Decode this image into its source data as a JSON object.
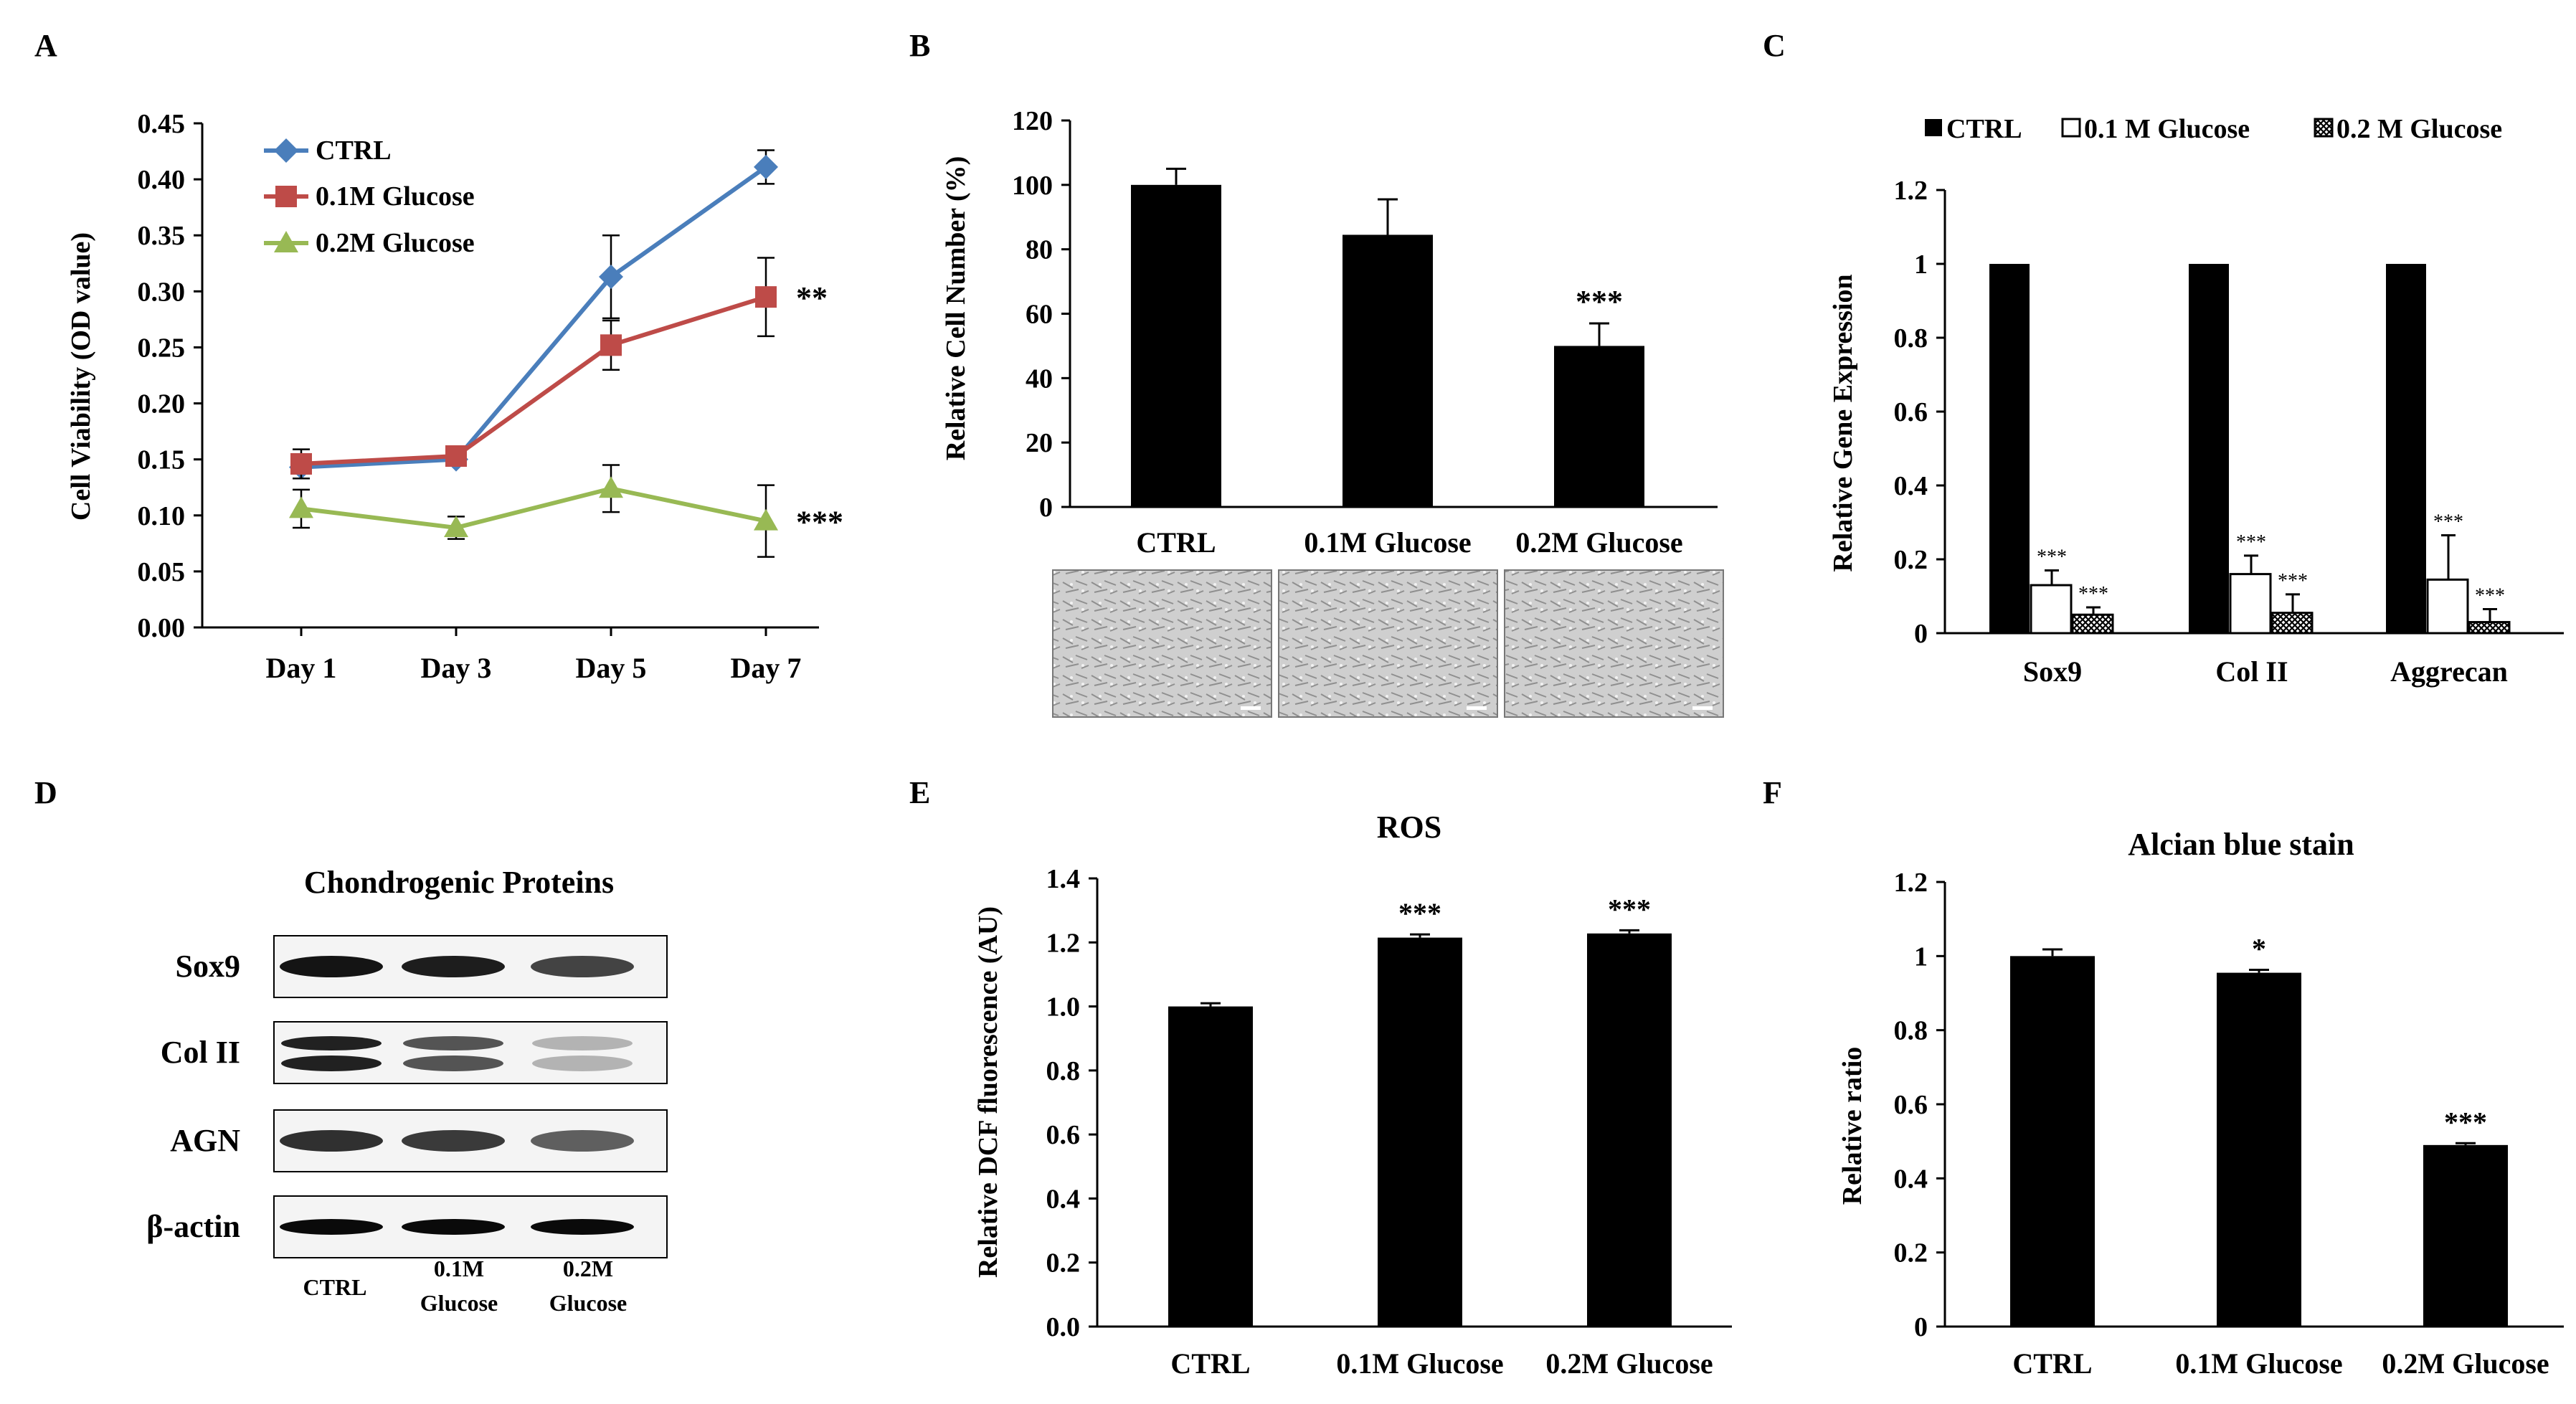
{
  "colors": {
    "ctrl": "#4a7ebb",
    "g01": "#be4b48",
    "g02": "#98b954",
    "bar": "#000000"
  },
  "panels": {
    "A": "A",
    "B": "B",
    "C": "C",
    "D": "D",
    "E": "E",
    "F": "F"
  },
  "chart_data": [
    {
      "id": "A",
      "type": "line",
      "title": "",
      "xlabel": "",
      "ylabel": "Cell Viability (OD value)",
      "ylim": [
        0,
        0.45
      ],
      "yticks": [
        "0.00",
        "0.05",
        "0.10",
        "0.15",
        "0.20",
        "0.25",
        "0.30",
        "0.35",
        "0.40",
        "0.45"
      ],
      "categories": [
        "Day 1",
        "Day 3",
        "Day 5",
        "Day 7"
      ],
      "legend": "top-left",
      "series": [
        {
          "name": "CTRL",
          "color": "#4a7ebb",
          "marker": "diamond",
          "values": [
            0.143,
            0.15,
            0.313,
            0.411
          ],
          "errors": [
            0.01,
            0.005,
            0.037,
            0.015
          ],
          "sig": ""
        },
        {
          "name": "0.1M Glucose",
          "color": "#be4b48",
          "marker": "square",
          "values": [
            0.146,
            0.153,
            0.252,
            0.295
          ],
          "errors": [
            0.013,
            0.005,
            0.022,
            0.035
          ],
          "sig": "**"
        },
        {
          "name": "0.2M Glucose",
          "color": "#98b954",
          "marker": "triangle",
          "values": [
            0.106,
            0.089,
            0.124,
            0.095
          ],
          "errors": [
            0.017,
            0.01,
            0.021,
            0.032
          ],
          "sig": "***"
        }
      ]
    },
    {
      "id": "B",
      "type": "bar",
      "title": "",
      "ylabel": "Relative Cell Number (%)",
      "ylim": [
        0,
        120
      ],
      "yticks": [
        "0",
        "20",
        "40",
        "60",
        "80",
        "100",
        "120"
      ],
      "categories": [
        "CTRL",
        "0.1M Glucose",
        "0.2M Glucose"
      ],
      "values": [
        100,
        84.5,
        50
      ],
      "errors": [
        5,
        11,
        7
      ],
      "sig": [
        "",
        "",
        "***"
      ]
    },
    {
      "id": "C",
      "type": "bar",
      "title": "",
      "ylabel": "Relative Gene Expression",
      "ylim": [
        0,
        1.2
      ],
      "yticks": [
        "0",
        "0.2",
        "0.4",
        "0.6",
        "0.8",
        "1",
        "1.2"
      ],
      "categories": [
        "Sox9",
        "Col II",
        "Aggrecan"
      ],
      "legend": "top",
      "series": [
        {
          "name": "CTRL",
          "values": [
            1,
            1,
            1
          ],
          "errors": [
            0,
            0,
            0
          ],
          "sig": [
            "",
            "",
            ""
          ]
        },
        {
          "name": "0.1 M Glucose",
          "values": [
            0.13,
            0.16,
            0.145
          ],
          "errors": [
            0.04,
            0.05,
            0.12
          ],
          "sig": [
            "***",
            "***",
            "***"
          ]
        },
        {
          "name": "0.2 M Glucose",
          "values": [
            0.05,
            0.055,
            0.03
          ],
          "errors": [
            0.02,
            0.05,
            0.035
          ],
          "sig": [
            "***",
            "***",
            "***"
          ]
        }
      ]
    },
    {
      "id": "E",
      "type": "bar",
      "title": "ROS",
      "ylabel": "Relative DCF fluorescence (AU)",
      "ylim": [
        0,
        1.4
      ],
      "yticks": [
        "0.0",
        "0.2",
        "0.4",
        "0.6",
        "0.8",
        "1.0",
        "1.2",
        "1.4"
      ],
      "categories": [
        "CTRL",
        "0.1M Glucose",
        "0.2M Glucose"
      ],
      "values": [
        1.0,
        1.215,
        1.228
      ],
      "errors": [
        0.01,
        0.01,
        0.01
      ],
      "sig": [
        "",
        "***",
        "***"
      ]
    },
    {
      "id": "F",
      "type": "bar",
      "title": "Alcian blue stain",
      "ylabel": "Relative ratio",
      "ylim": [
        0,
        1.2
      ],
      "yticks": [
        "0",
        "0.2",
        "0.4",
        "0.6",
        "0.8",
        "1",
        "1.2"
      ],
      "categories": [
        "CTRL",
        "0.1M Glucose",
        "0.2M Glucose"
      ],
      "values": [
        1.0,
        0.955,
        0.49
      ],
      "errors": [
        0.018,
        0.008,
        0.005
      ],
      "sig": [
        "",
        "*",
        "***"
      ]
    }
  ],
  "western_blot": {
    "title": "Chondrogenic Proteins",
    "rows": [
      "Sox9",
      "Col II",
      "AGN",
      "β-actin"
    ],
    "lane_labels": [
      {
        "line1": "CTRL",
        "line2": ""
      },
      {
        "line1": "0.1M",
        "line2": "Glucose"
      },
      {
        "line1": "0.2M",
        "line2": "Glucose"
      }
    ]
  }
}
